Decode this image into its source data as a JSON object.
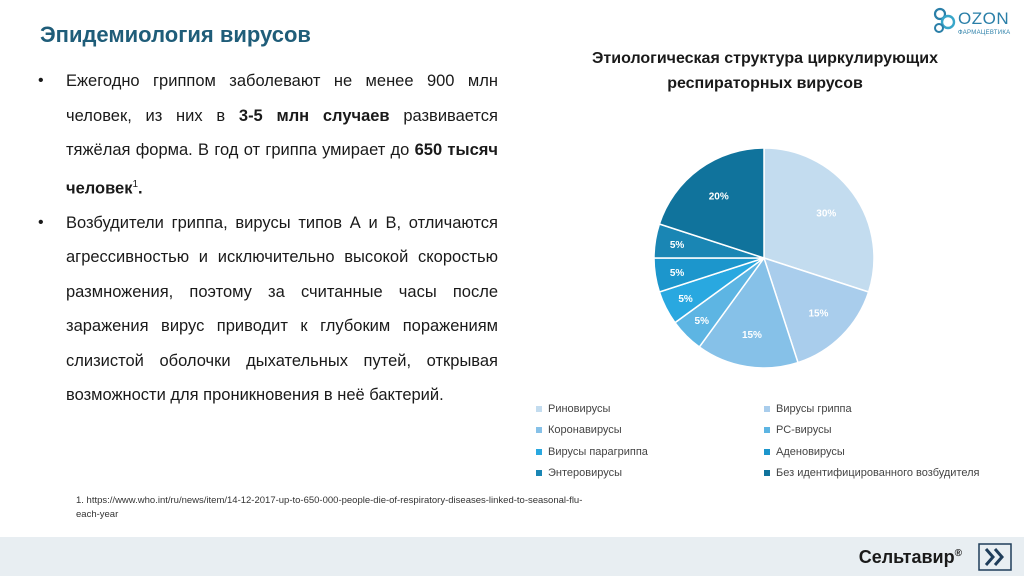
{
  "slide_title": "Эпидемиология вирусов",
  "logo": {
    "name": "OZON",
    "subtitle": "ФАРМАЦЕВТИКА"
  },
  "bullets": [
    {
      "t1": "Ежегодно гриппом заболевают не менее 900 млн человек, из них в ",
      "b1": "3-5 млн случаев",
      "t2": " развивается тяжёлая форма. В год от гриппа умирает до ",
      "b2": "650 тысяч человек",
      "sup": "1",
      "t3": "."
    },
    {
      "t1": "Возбудители гриппа, вирусы типов А и В, отличаются агрессивностью и исключительно высокой скоростью размножения, поэтому за считанные часы после заражения вирус приводит к глубоким поражениям слизистой оболочки дыхательных путей, открывая возможности для проникновения в неё бактерий."
    }
  ],
  "footnote": "1. https://www.who.int/ru/news/item/14-12-2017-up-to-650-000-people-die-of-respiratory-diseases-linked-to-seasonal-flu-each-year",
  "brand": {
    "name": "Сельтавир",
    "mark": "®"
  },
  "chart_data": {
    "type": "pie",
    "title": "Этиологическая структура циркулирующих респираторных вирусов",
    "legend_position": "bottom",
    "slices": [
      {
        "label": "Риновирусы",
        "value": 30,
        "display": "30%",
        "color": "#c3dcef"
      },
      {
        "label": "Вирусы гриппа",
        "value": 15,
        "display": "15%",
        "color": "#a9cdec"
      },
      {
        "label": "Коронавирусы",
        "value": 15,
        "display": "15%",
        "color": "#86c1e8"
      },
      {
        "label": "РС-вирусы",
        "value": 5,
        "display": "5%",
        "color": "#5db5e3"
      },
      {
        "label": "Вирусы парагриппа",
        "value": 5,
        "display": "5%",
        "color": "#29a8e0"
      },
      {
        "label": "Аденовирусы",
        "value": 5,
        "display": "5%",
        "color": "#1c96cc"
      },
      {
        "label": "Энтеровирусы",
        "value": 5,
        "display": "5%",
        "color": "#1a86b4"
      },
      {
        "label": "Без идентифицированного возбудителя",
        "value": 20,
        "display": "20%",
        "color": "#10739c"
      }
    ]
  }
}
